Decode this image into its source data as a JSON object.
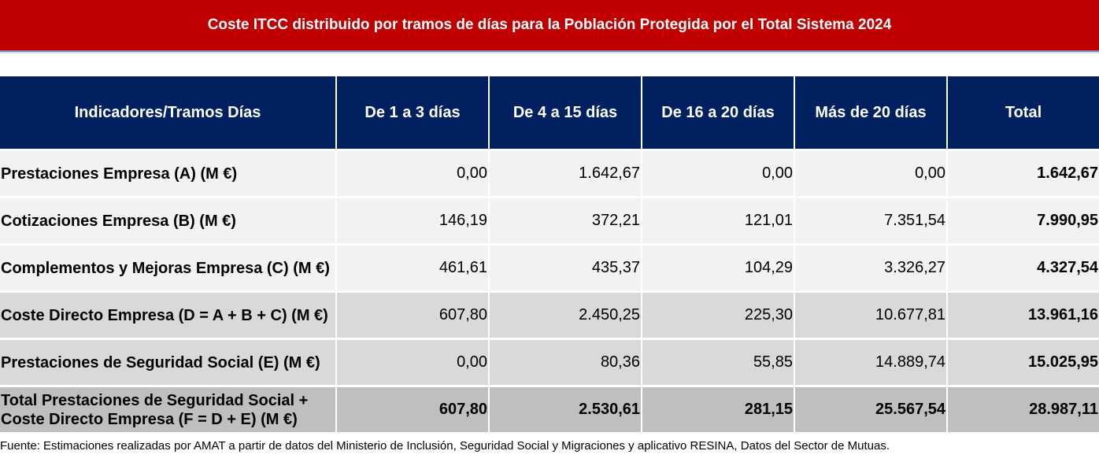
{
  "title": "Coste ITCC distribuido por tramos de días para la Población Protegida por el Total Sistema 2024",
  "table": {
    "headers": [
      "Indicadores/Tramos Días",
      "De 1 a 3 días",
      "De 4 a 15 días",
      "De 16 a 20 días",
      "Más de 20 días",
      "Total"
    ],
    "rows": [
      {
        "label": "Prestaciones Empresa (A) (M €)",
        "values": [
          "0,00",
          "1.642,67",
          "0,00",
          "0,00",
          "1.642,67"
        ]
      },
      {
        "label": "Cotizaciones Empresa (B) (M €)",
        "values": [
          "146,19",
          "372,21",
          "121,01",
          "7.351,54",
          "7.990,95"
        ]
      },
      {
        "label": "Complementos y Mejoras Empresa (C) (M €)",
        "values": [
          "461,61",
          "435,37",
          "104,29",
          "3.326,27",
          "4.327,54"
        ]
      },
      {
        "label": "Coste Directo Empresa (D = A + B + C) (M €)",
        "values": [
          "607,80",
          "2.450,25",
          "225,30",
          "10.677,81",
          "13.961,16"
        ]
      },
      {
        "label": "Prestaciones de Seguridad Social (E) (M €)",
        "values": [
          "0,00",
          "80,36",
          "55,85",
          "14.889,74",
          "15.025,95"
        ]
      },
      {
        "label": "Total Prestaciones de Seguridad Social + Coste Directo Empresa (F = D + E) (M €)",
        "values": [
          "607,80",
          "2.530,61",
          "281,15",
          "25.567,54",
          "28.987,11"
        ]
      }
    ]
  },
  "footnote": "Fuente: Estimaciones realizadas por AMAT a partir de datos del Ministerio de Inclusión, Seguridad Social y Migraciones y aplicativo RESINA, Datos del Sector de Mutuas."
}
